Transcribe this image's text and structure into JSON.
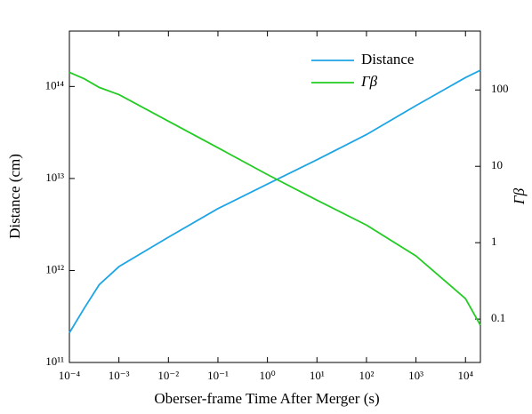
{
  "chart_data": {
    "type": "line",
    "xlabel": "Oberser-frame Time After Merger (s)",
    "ylabel": "Distance (cm)",
    "y2label": "Γβ",
    "xscale": "log",
    "yscale": "log",
    "y2scale": "log",
    "legend": "upper right",
    "x": [
      0.0001,
      0.0002,
      0.0004,
      0.001,
      0.01,
      0.1,
      1,
      10,
      100,
      1000,
      10000,
      20000
    ],
    "series": [
      {
        "name": "Distance",
        "color": "#1ea5e6",
        "values": [
          210000000000.0,
          390000000000.0,
          700000000000.0,
          1100000000000.0,
          2300000000000.0,
          4700000000000.0,
          8700000000000.0,
          16000000000000.0,
          30000000000000.0,
          62000000000000.0,
          125000000000000.0,
          150000000000000.0
        ]
      },
      {
        "name": "Γβ",
        "color": "#22cc22",
        "axis": "y2",
        "values": [
          170,
          140,
          108,
          87,
          39,
          17.5,
          7.8,
          3.6,
          1.7,
          0.67,
          0.185,
          0.083
        ]
      }
    ],
    "xlim": [
      0.0001,
      20000
    ],
    "ylim": [
      100000000000.0,
      400000000000000.0
    ],
    "y2lim": [
      0.027,
      590
    ],
    "xticks": [
      {
        "value": 0.0001,
        "label": "10⁻⁴"
      },
      {
        "value": 0.001,
        "label": "10⁻³"
      },
      {
        "value": 0.01,
        "label": "10⁻²"
      },
      {
        "value": 0.1,
        "label": "10⁻¹"
      },
      {
        "value": 1,
        "label": "10⁰"
      },
      {
        "value": 10,
        "label": "10¹"
      },
      {
        "value": 100,
        "label": "10²"
      },
      {
        "value": 1000,
        "label": "10³"
      },
      {
        "value": 10000,
        "label": "10⁴"
      }
    ],
    "yticks": [
      {
        "value": 100000000000.0,
        "label": "10¹¹"
      },
      {
        "value": 1000000000000.0,
        "label": "10¹²"
      },
      {
        "value": 10000000000000.0,
        "label": "10¹³"
      },
      {
        "value": 100000000000000.0,
        "label": "10¹⁴"
      }
    ],
    "y2ticks": [
      0.1,
      1,
      10,
      100
    ]
  }
}
